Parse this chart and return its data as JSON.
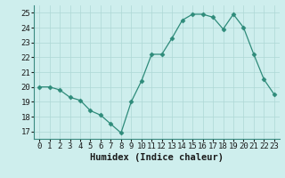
{
  "x": [
    0,
    1,
    2,
    3,
    4,
    5,
    6,
    7,
    8,
    9,
    10,
    11,
    12,
    13,
    14,
    15,
    16,
    17,
    18,
    19,
    20,
    21,
    22,
    23
  ],
  "y": [
    20.0,
    20.0,
    19.8,
    19.3,
    19.1,
    18.4,
    18.1,
    17.5,
    16.9,
    19.0,
    20.4,
    22.2,
    22.2,
    23.3,
    24.5,
    24.9,
    24.9,
    24.7,
    23.9,
    24.9,
    24.0,
    22.2,
    20.5,
    19.5
  ],
  "line_color": "#2e8b7a",
  "marker": "D",
  "marker_size": 2.5,
  "bg_color": "#ceeeed",
  "grid_color": "#aed8d5",
  "xlabel": "Humidex (Indice chaleur)",
  "xlim": [
    -0.5,
    23.5
  ],
  "ylim": [
    16.5,
    25.5
  ],
  "yticks": [
    17,
    18,
    19,
    20,
    21,
    22,
    23,
    24,
    25
  ],
  "xticks": [
    0,
    1,
    2,
    3,
    4,
    5,
    6,
    7,
    8,
    9,
    10,
    11,
    12,
    13,
    14,
    15,
    16,
    17,
    18,
    19,
    20,
    21,
    22,
    23
  ],
  "tick_fontsize": 6.5,
  "xlabel_fontsize": 7.5,
  "spine_color": "#3a8a80"
}
